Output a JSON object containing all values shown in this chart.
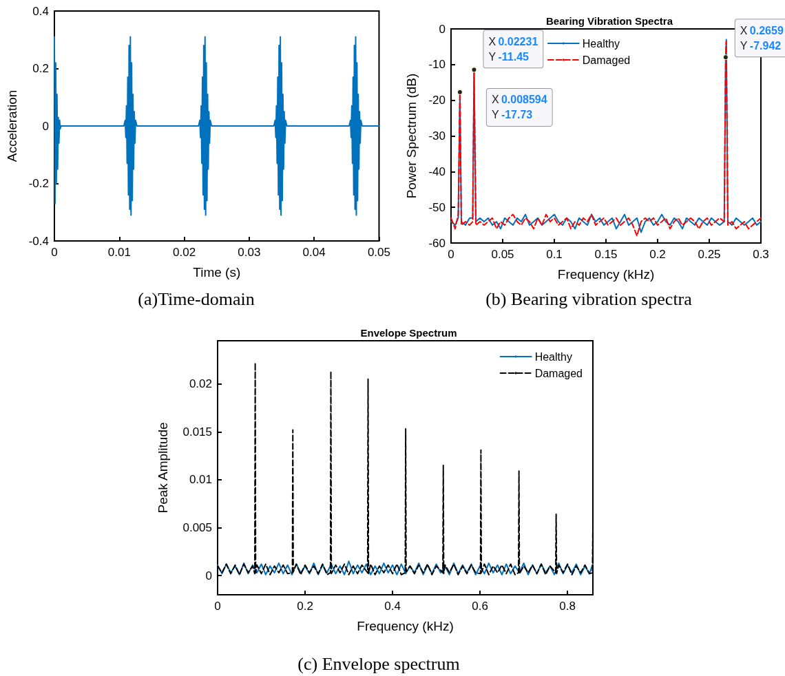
{
  "chart_data": [
    {
      "type": "line",
      "xlabel": "Time (s)",
      "ylabel": "Acceleration",
      "annotations": [
        "(a)Time-domain"
      ],
      "xlim": [
        0,
        0.05
      ],
      "ylim": [
        -0.4,
        0.4
      ],
      "xticks": [
        0,
        0.01,
        0.02,
        0.03,
        0.04,
        0.05
      ],
      "yticks": [
        -0.4,
        -0.2,
        0,
        0.2,
        0.4
      ],
      "color": "#0072bd",
      "x": [
        0,
        0.0001,
        0.0002,
        0.0003,
        0.0004,
        0.0005,
        0.0006,
        0.0007,
        0.0008,
        0.0009,
        0.001,
        0.0107,
        0.0109,
        0.011,
        0.0111,
        0.0112,
        0.0113,
        0.0114,
        0.0115,
        0.0116,
        0.0117,
        0.0118,
        0.0119,
        0.012,
        0.0121,
        0.0122,
        0.0123,
        0.0124,
        0.0125,
        0.0127,
        0.0222,
        0.0224,
        0.0225,
        0.0226,
        0.0227,
        0.0228,
        0.0229,
        0.023,
        0.0231,
        0.0232,
        0.0233,
        0.0234,
        0.0235,
        0.0236,
        0.0237,
        0.0238,
        0.0239,
        0.024,
        0.0242,
        0.0338,
        0.034,
        0.0341,
        0.0342,
        0.0343,
        0.0344,
        0.0345,
        0.0346,
        0.0347,
        0.0348,
        0.0349,
        0.035,
        0.0351,
        0.0352,
        0.0353,
        0.0354,
        0.0355,
        0.0356,
        0.0358,
        0.0454,
        0.0456,
        0.0457,
        0.0458,
        0.0459,
        0.046,
        0.0461,
        0.0462,
        0.0463,
        0.0464,
        0.0465,
        0.0466,
        0.0467,
        0.0468,
        0.0469,
        0.047,
        0.0471,
        0.0472,
        0.0474,
        0.05
      ],
      "values": [
        0.31,
        -0.27,
        0.22,
        -0.2,
        0.11,
        -0.15,
        0.03,
        -0.06,
        0.02,
        -0.01,
        0,
        0,
        0.02,
        -0.04,
        0.07,
        -0.13,
        0.17,
        -0.24,
        0.28,
        -0.29,
        0.31,
        -0.31,
        0.22,
        -0.26,
        0.11,
        -0.15,
        0.05,
        -0.06,
        0.02,
        0,
        0,
        0.02,
        -0.04,
        0.07,
        -0.13,
        0.17,
        -0.24,
        0.28,
        -0.29,
        0.31,
        -0.31,
        0.22,
        -0.26,
        0.11,
        -0.15,
        0.05,
        -0.06,
        0.02,
        0,
        0,
        0.02,
        -0.04,
        0.07,
        -0.13,
        0.17,
        -0.24,
        0.28,
        -0.29,
        0.31,
        -0.31,
        0.22,
        -0.26,
        0.11,
        -0.15,
        0.05,
        -0.06,
        0.02,
        0,
        0,
        0.02,
        -0.04,
        0.07,
        -0.13,
        0.17,
        -0.24,
        0.28,
        -0.29,
        0.31,
        -0.31,
        0.22,
        -0.26,
        0.11,
        -0.15,
        0.05,
        -0.06,
        0.02,
        0,
        0
      ]
    },
    {
      "type": "line",
      "title": "Bearing Vibration Spectra",
      "xlabel": "Frequency (kHz)",
      "ylabel": "Power Spectrum (dB)",
      "legend": "top",
      "xlim": [
        0,
        0.3
      ],
      "ylim": [
        -60,
        0
      ],
      "xticks": [
        0,
        0.05,
        0.1,
        0.15,
        0.2,
        0.25,
        0.3
      ],
      "yticks": [
        -60,
        -50,
        -40,
        -30,
        -20,
        -10,
        0
      ],
      "annotations": [
        {
          "text": "X 0.008594\nY -17.73",
          "x": 0.008594,
          "y": -17.73
        },
        {
          "text": "X 0.02231\nY -11.45",
          "x": 0.02231,
          "y": -11.45
        },
        {
          "text": "X 0.2659\nY -7.942",
          "x": 0.2659,
          "y": -7.942
        },
        "(b) Bearing vibration spectra"
      ],
      "x": [
        0,
        0.004,
        0.007,
        0.0086,
        0.01,
        0.014,
        0.018,
        0.021,
        0.0223,
        0.024,
        0.028,
        0.032,
        0.036,
        0.04,
        0.044,
        0.048,
        0.052,
        0.056,
        0.06,
        0.064,
        0.068,
        0.072,
        0.076,
        0.08,
        0.084,
        0.088,
        0.092,
        0.096,
        0.1,
        0.104,
        0.108,
        0.112,
        0.116,
        0.12,
        0.124,
        0.128,
        0.132,
        0.136,
        0.14,
        0.144,
        0.148,
        0.152,
        0.156,
        0.16,
        0.164,
        0.168,
        0.172,
        0.176,
        0.18,
        0.184,
        0.188,
        0.192,
        0.196,
        0.2,
        0.204,
        0.208,
        0.212,
        0.216,
        0.22,
        0.224,
        0.228,
        0.232,
        0.236,
        0.24,
        0.244,
        0.248,
        0.252,
        0.256,
        0.26,
        0.2645,
        0.2659,
        0.2665,
        0.268,
        0.272,
        0.276,
        0.28,
        0.284,
        0.288,
        0.292,
        0.296,
        0.3
      ],
      "series": [
        {
          "name": "Healthy",
          "color": "#0072bd",
          "line_style": "solid",
          "values": [
            -54,
            -55,
            -53,
            -17.73,
            -54,
            -55,
            -53,
            -53,
            -11.45,
            -54,
            -53,
            -54,
            -53,
            -55,
            -54,
            -56,
            -53,
            -54,
            -55,
            -53,
            -54,
            -52,
            -55,
            -54,
            -53,
            -55,
            -54,
            -53,
            -52,
            -54,
            -55,
            -53,
            -54,
            -56,
            -53,
            -54,
            -55,
            -52,
            -54,
            -53,
            -55,
            -54,
            -53,
            -56,
            -54,
            -52,
            -55,
            -54,
            -53,
            -57,
            -54,
            -53,
            -55,
            -54,
            -52,
            -54,
            -55,
            -53,
            -54,
            -56,
            -53,
            -54,
            -55,
            -53,
            -54,
            -55,
            -53,
            -54,
            -55,
            -54,
            -7.942,
            -3,
            -54,
            -55,
            -53,
            -54,
            -55,
            -54,
            -53,
            -55,
            -54
          ]
        },
        {
          "name": "Damaged",
          "color": "#ff0000",
          "line_style": "dashed",
          "values": [
            -53,
            -56,
            -52,
            -18,
            -55,
            -54,
            -55,
            -54,
            -11.5,
            -55,
            -54,
            -55,
            -54,
            -53,
            -56,
            -54,
            -55,
            -53,
            -52,
            -54,
            -55,
            -53,
            -54,
            -56,
            -53,
            -55,
            -52,
            -54,
            -53,
            -55,
            -54,
            -53,
            -56,
            -54,
            -55,
            -53,
            -54,
            -52,
            -55,
            -54,
            -53,
            -55,
            -54,
            -53,
            -55,
            -54,
            -53,
            -55,
            -58,
            -54,
            -53,
            -54,
            -53,
            -55,
            -54,
            -53,
            -56,
            -54,
            -53,
            -55,
            -54,
            -53,
            -54,
            -56,
            -54,
            -53,
            -55,
            -54,
            -53,
            -54,
            -8,
            -3.5,
            -55,
            -54,
            -56,
            -55,
            -54,
            -56,
            -55,
            -54,
            -53
          ]
        }
      ]
    },
    {
      "type": "line",
      "title": "Envelope Spectrum",
      "xlabel": "Frequency (kHz)",
      "ylabel": "Peak Amplitude",
      "legend": "top right",
      "annotations": [
        "(c) Envelope spectrum"
      ],
      "xlim": [
        0,
        0.858
      ],
      "ylim": [
        -0.002,
        0.0245
      ],
      "xticks": [
        0,
        0.2,
        0.4,
        0.6,
        0.8
      ],
      "yticks": [
        0,
        0.005,
        0.01,
        0.015,
        0.02
      ],
      "series": [
        {
          "name": "Healthy",
          "color": "#0072bd",
          "line_style": "solid",
          "x": [
            0,
            0.01,
            0.02,
            0.03,
            0.04,
            0.05,
            0.06,
            0.07,
            0.08,
            0.09,
            0.1,
            0.11,
            0.12,
            0.13,
            0.14,
            0.15,
            0.16,
            0.17,
            0.18,
            0.19,
            0.2,
            0.21,
            0.22,
            0.23,
            0.24,
            0.25,
            0.26,
            0.27,
            0.28,
            0.29,
            0.3,
            0.31,
            0.32,
            0.33,
            0.34,
            0.35,
            0.36,
            0.37,
            0.38,
            0.39,
            0.4,
            0.41,
            0.42,
            0.43,
            0.44,
            0.45,
            0.46,
            0.47,
            0.48,
            0.49,
            0.5,
            0.51,
            0.52,
            0.53,
            0.54,
            0.55,
            0.56,
            0.57,
            0.58,
            0.59,
            0.6,
            0.61,
            0.62,
            0.63,
            0.64,
            0.65,
            0.66,
            0.67,
            0.68,
            0.69,
            0.7,
            0.71,
            0.72,
            0.73,
            0.74,
            0.75,
            0.76,
            0.77,
            0.78,
            0.79,
            0.8,
            0.81,
            0.82,
            0.83,
            0.84,
            0.85,
            0.858
          ],
          "values": [
            0.0011,
            0.0002,
            0.0012,
            0.0003,
            0.001,
            0.0001,
            0.0013,
            0.0002,
            0.0011,
            0.0003,
            0.0012,
            0.0001,
            0.001,
            0.0003,
            0.0013,
            0.0002,
            0.0011,
            0.0001,
            0.0012,
            0.0003,
            0.001,
            0.0002,
            0.0013,
            0.0001,
            0.0011,
            0.0003,
            0.0012,
            0.0002,
            0.001,
            0.0001,
            0.0015,
            0.0002,
            0.0011,
            0.0003,
            0.0012,
            0.0001,
            0.001,
            0.0002,
            0.0013,
            0.0003,
            0.0011,
            0.0001,
            0.0012,
            0.0002,
            0.001,
            0.0003,
            0.0013,
            0.0001,
            0.0011,
            0.0002,
            0.0012,
            0.0003,
            0.001,
            0.0001,
            0.0013,
            0.0002,
            0.0011,
            0.0003,
            0.0012,
            0.0001,
            0.001,
            0.0002,
            0.0013,
            0.0003,
            0.0011,
            0.0001,
            0.0012,
            0.0002,
            0.001,
            0.0003,
            0.0013,
            0.0001,
            0.0011,
            0.0002,
            0.0012,
            0.0003,
            0.001,
            0.0001,
            0.0013,
            0.0002,
            0.0011,
            0.0003,
            0.0012,
            0.0001,
            0.001,
            0.0002,
            0.0012
          ]
        },
        {
          "name": "Damaged",
          "color": "#000000",
          "line_style": "dashed",
          "x": [
            0,
            0.01,
            0.02,
            0.03,
            0.04,
            0.05,
            0.06,
            0.07,
            0.08,
            0.085,
            0.086,
            0.087,
            0.09,
            0.1,
            0.11,
            0.12,
            0.13,
            0.14,
            0.15,
            0.16,
            0.171,
            0.172,
            0.173,
            0.18,
            0.19,
            0.2,
            0.21,
            0.22,
            0.23,
            0.24,
            0.25,
            0.258,
            0.259,
            0.26,
            0.27,
            0.28,
            0.29,
            0.3,
            0.31,
            0.32,
            0.33,
            0.343,
            0.344,
            0.345,
            0.35,
            0.36,
            0.37,
            0.38,
            0.39,
            0.4,
            0.41,
            0.42,
            0.429,
            0.43,
            0.431,
            0.44,
            0.45,
            0.46,
            0.47,
            0.48,
            0.49,
            0.5,
            0.515,
            0.516,
            0.517,
            0.52,
            0.53,
            0.54,
            0.55,
            0.56,
            0.57,
            0.58,
            0.59,
            0.601,
            0.602,
            0.603,
            0.61,
            0.62,
            0.63,
            0.64,
            0.65,
            0.66,
            0.67,
            0.68,
            0.688,
            0.689,
            0.69,
            0.7,
            0.71,
            0.72,
            0.73,
            0.74,
            0.75,
            0.76,
            0.773,
            0.774,
            0.775,
            0.78,
            0.79,
            0.8,
            0.81,
            0.82,
            0.83,
            0.84,
            0.85,
            0.857,
            0.858
          ],
          "values": [
            0.001,
            0.0003,
            0.0012,
            0.0002,
            0.0011,
            0.0001,
            0.0012,
            0.0003,
            0.001,
            0.0002,
            0.0222,
            0.0003,
            0.0011,
            0.0002,
            0.0012,
            0.0001,
            0.001,
            0.0003,
            0.0011,
            0.0002,
            0.0003,
            0.0152,
            0.0004,
            0.0012,
            0.0001,
            0.0011,
            0.0003,
            0.001,
            0.0002,
            0.0012,
            0.0001,
            0.0003,
            0.0213,
            0.0002,
            0.0011,
            0.0003,
            0.0012,
            0.0001,
            0.001,
            0.0002,
            0.0011,
            0.0003,
            0.0205,
            0.0002,
            0.0012,
            0.0001,
            0.001,
            0.0003,
            0.0011,
            0.0002,
            0.0012,
            0.0001,
            0.0003,
            0.0153,
            0.0004,
            0.001,
            0.0002,
            0.0011,
            0.0003,
            0.0012,
            0.0001,
            0.001,
            0.0003,
            0.0115,
            0.0002,
            0.0011,
            0.0003,
            0.0012,
            0.0001,
            0.001,
            0.0002,
            0.0011,
            0.0003,
            0.0002,
            0.0131,
            0.0003,
            0.0012,
            0.0001,
            0.001,
            0.0003,
            0.0011,
            0.0002,
            0.0012,
            0.0001,
            0.0003,
            0.0109,
            0.0002,
            0.001,
            0.0003,
            0.0011,
            0.0002,
            0.0012,
            0.0001,
            0.001,
            0.0003,
            0.0064,
            0.0002,
            0.0011,
            0.0003,
            0.0012,
            0.0001,
            0.001,
            0.0003,
            0.0011,
            0.0002,
            0.0003,
            0.0055
          ]
        }
      ]
    }
  ]
}
